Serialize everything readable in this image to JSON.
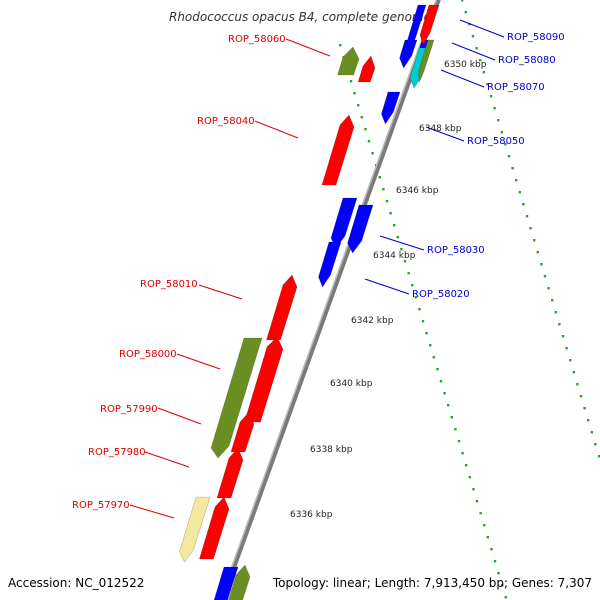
{
  "title": "Rhodococcus opacus B4, complete genome",
  "footer": {
    "accession": "Accession: NC_012522",
    "summary": "Topology: linear; Length: 7,913,450 bp; Genes: 7,307"
  },
  "colors": {
    "reverse_label": "#dd0000",
    "forward_label": "#0000cc",
    "red_gene": "#ff0000",
    "blue_gene": "#0000ff",
    "olive_gene": "#6b8e23",
    "cyan_gene": "#00cccc",
    "pale_gene": "#f5e6a0",
    "backbone": "#888888",
    "tick_dots": "#2e9e2e"
  },
  "ruler": [
    {
      "label": "6350 kbp",
      "kbp": 6350
    },
    {
      "label": "6348 kbp",
      "kbp": 6348
    },
    {
      "label": "6346 kbp",
      "kbp": 6346
    },
    {
      "label": "6344 kbp",
      "kbp": 6344
    },
    {
      "label": "6342 kbp",
      "kbp": 6342
    },
    {
      "label": "6340 kbp",
      "kbp": 6340
    },
    {
      "label": "6338 kbp",
      "kbp": 6338
    },
    {
      "label": "6336 kbp",
      "kbp": 6336
    }
  ],
  "genes": {
    "reverse": [
      {
        "name": "ROP_58060",
        "color": "red"
      },
      {
        "name": "ROP_58040",
        "color": "red"
      },
      {
        "name": "ROP_58010",
        "color": "red"
      },
      {
        "name": "ROP_58000",
        "color": "olive"
      },
      {
        "name": "ROP_57990",
        "color": "red"
      },
      {
        "name": "ROP_57980",
        "color": "red"
      },
      {
        "name": "ROP_57970",
        "color": "red"
      }
    ],
    "forward": [
      {
        "name": "ROP_58090",
        "color": "blue"
      },
      {
        "name": "ROP_58080",
        "color": "blue"
      },
      {
        "name": "ROP_58070",
        "color": "cyan"
      },
      {
        "name": "ROP_58050",
        "color": "blue"
      },
      {
        "name": "ROP_58030",
        "color": "blue"
      },
      {
        "name": "ROP_58020",
        "color": "blue"
      }
    ]
  }
}
